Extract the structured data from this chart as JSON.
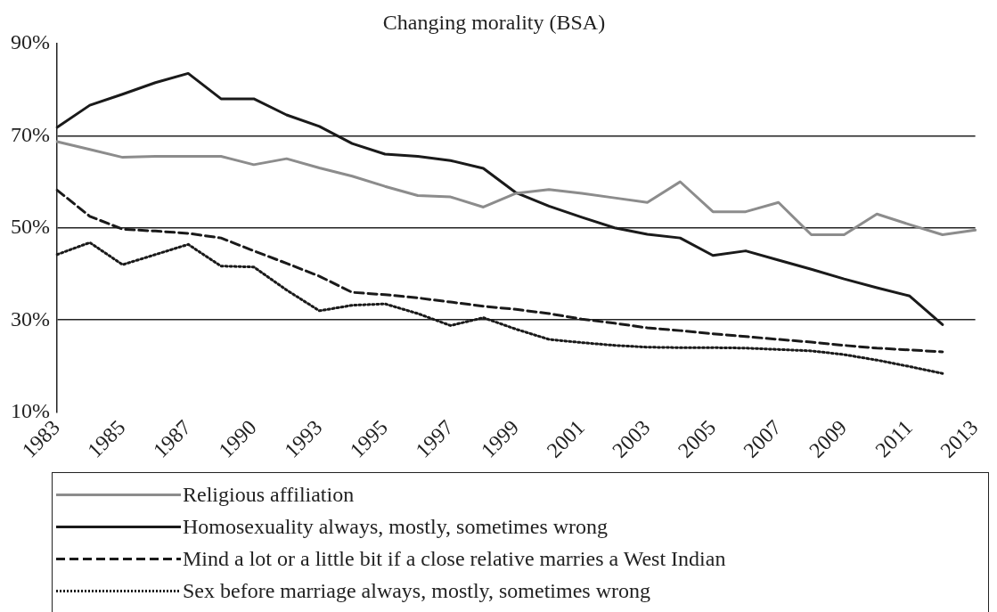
{
  "chart_data": {
    "type": "line",
    "title": "Changing morality (BSA)",
    "categories": [
      "1983",
      null,
      "1985",
      null,
      "1987",
      null,
      "1990",
      null,
      "1993",
      null,
      "1995",
      null,
      "1997",
      null,
      "1999",
      null,
      "2001",
      null,
      "2003",
      null,
      "2005",
      null,
      "2007",
      null,
      "2009",
      null,
      "2011",
      null,
      "2013"
    ],
    "series": [
      {
        "name": "Religious affiliation",
        "color": "#8c8c8c",
        "line_style": "solid",
        "values": [
          68.7,
          67,
          65.3,
          65.5,
          65.5,
          65.5,
          63.7,
          65,
          63,
          61.2,
          59,
          57,
          56.7,
          54.5,
          57.5,
          58.3,
          57.5,
          56.5,
          55.5,
          60,
          53.5,
          53.5,
          55.5,
          48.5,
          48.5,
          53,
          50.7,
          48.5,
          49.5
        ]
      },
      {
        "name": "Homosexuality always, mostly, sometimes wrong",
        "color": "#1a1a1a",
        "line_style": "solid",
        "values": [
          71.8,
          76.6,
          79,
          81.5,
          83.5,
          78,
          78,
          74.5,
          72,
          68.3,
          66,
          65.5,
          64.6,
          62.9,
          57.6,
          54.7,
          52.3,
          50,
          48.6,
          47.8,
          44,
          45,
          43,
          41,
          38.9,
          37,
          35.2,
          29,
          null
        ]
      },
      {
        "name": "Mind a lot or a little bit if a close relative marries a West Indian",
        "color": "#1a1a1a",
        "line_style": "dashed",
        "values": [
          58.2,
          52.5,
          49.7,
          49.3,
          48.8,
          47.8,
          45,
          42.3,
          39.5,
          36,
          35.5,
          34.8,
          33.9,
          33,
          32.3,
          31.4,
          30.2,
          29.3,
          28.3,
          27.7,
          27,
          26.4,
          25.8,
          25.2,
          24.5,
          23.9,
          23.5,
          23.1,
          null
        ]
      },
      {
        "name": "Sex before marriage always, mostly, sometimes wrong",
        "color": "#1a1a1a",
        "line_style": "dotted",
        "values": [
          44.2,
          46.8,
          42,
          44.2,
          46.4,
          41.7,
          41.5,
          36.5,
          32,
          33.2,
          33.5,
          31.4,
          28.8,
          30.5,
          28,
          25.8,
          25.1,
          24.5,
          24.1,
          24,
          24,
          23.9,
          23.6,
          23.3,
          22.5,
          21.3,
          19.9,
          18.4,
          null
        ]
      }
    ],
    "ylim": [
      10,
      90
    ],
    "yticks": [
      {
        "value": 10,
        "label": "10%"
      },
      {
        "value": 30,
        "label": "30%"
      },
      {
        "value": 50,
        "label": "50%"
      },
      {
        "value": 70,
        "label": "70%"
      },
      {
        "value": 90,
        "label": "90%"
      }
    ],
    "grid": "y",
    "legend": "bottom",
    "marker": "none"
  }
}
